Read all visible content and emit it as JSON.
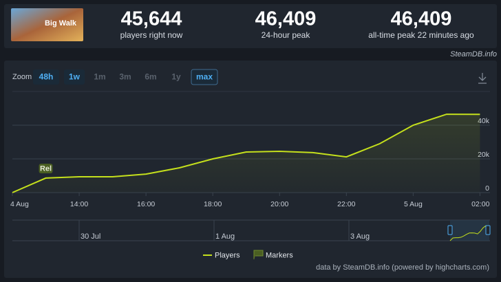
{
  "game_logo": "Big Walk",
  "stats": [
    {
      "value": "45,644",
      "label": "players right now"
    },
    {
      "value": "46,409",
      "label": "24-hour peak"
    },
    {
      "value": "46,409",
      "label": "all-time peak 22 minutes ago"
    }
  ],
  "site": "SteamDB.info",
  "zoom": {
    "label": "Zoom",
    "options": [
      "48h",
      "1w",
      "1m",
      "3m",
      "6m",
      "1y",
      "max"
    ]
  },
  "chart_data": {
    "type": "line",
    "x": [
      12,
      13,
      14,
      15,
      16,
      17,
      18,
      19,
      20,
      21,
      22,
      23,
      24,
      25,
      26
    ],
    "series": [
      {
        "name": "Players",
        "color": "#c5e01c",
        "values": [
          0,
          8600,
          9400,
          9400,
          11000,
          14700,
          20000,
          24100,
          24500,
          23700,
          21200,
          29000,
          40000,
          46500,
          46409
        ]
      }
    ],
    "xlim": [
      12,
      26.3
    ],
    "xticks": [
      {
        "value": 12,
        "label": "4 Aug"
      },
      {
        "value": 14,
        "label": "14:00"
      },
      {
        "value": 16,
        "label": "16:00"
      },
      {
        "value": 18,
        "label": "18:00"
      },
      {
        "value": 20,
        "label": "20:00"
      },
      {
        "value": 22,
        "label": "22:00"
      },
      {
        "value": 24,
        "label": "5 Aug"
      },
      {
        "value": 26,
        "label": "02:00"
      }
    ],
    "ylim": [
      0,
      60000
    ],
    "yticks": [
      0,
      {
        "value": 20000,
        "label": "20k"
      },
      {
        "value": 40000,
        "label": "40k"
      }
    ],
    "grid": true,
    "annotations": [
      {
        "x": 13,
        "label": "Rel"
      }
    ],
    "markers": {
      "name": "Markers",
      "color": "#4a5e22"
    },
    "navigator": {
      "labels": [
        "30 Jul",
        "1 Aug",
        "3 Aug"
      ]
    },
    "credits": "data by SteamDB.info (powered by highcharts.com)"
  }
}
